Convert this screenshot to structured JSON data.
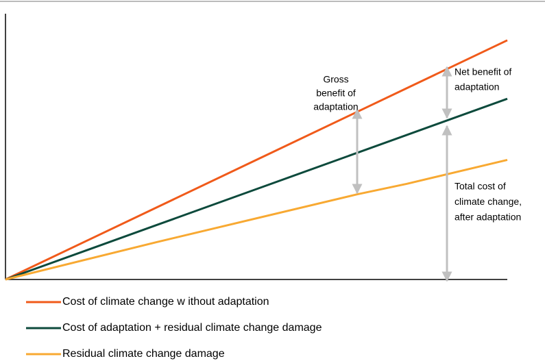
{
  "chart_data": {
    "type": "line",
    "x": [
      0,
      30,
      70,
      80,
      100
    ],
    "xlim": [
      0,
      100
    ],
    "ylim": [
      0,
      100
    ],
    "series": [
      {
        "name": "Cost of climate change w ithout adaptation",
        "color": "#f05a1a",
        "values": [
          0,
          27,
          63,
          72,
          90
        ]
      },
      {
        "name": "Cost of adaptation + residual climate change damage",
        "color": "#0d4a3c",
        "values": [
          0,
          20.4,
          47.6,
          54.4,
          68
        ]
      },
      {
        "name": "Residual climate change damage",
        "color": "#f8a932",
        "values": [
          0,
          14,
          32,
          36,
          45
        ]
      }
    ],
    "annotations": [
      {
        "lines": [
          "Gross",
          "benefit of",
          "adaptation"
        ]
      },
      {
        "lines": [
          "Net benefit of",
          "adaptation"
        ]
      },
      {
        "lines": [
          "Total cost of",
          "climate change,",
          "after adaptation"
        ]
      }
    ]
  }
}
